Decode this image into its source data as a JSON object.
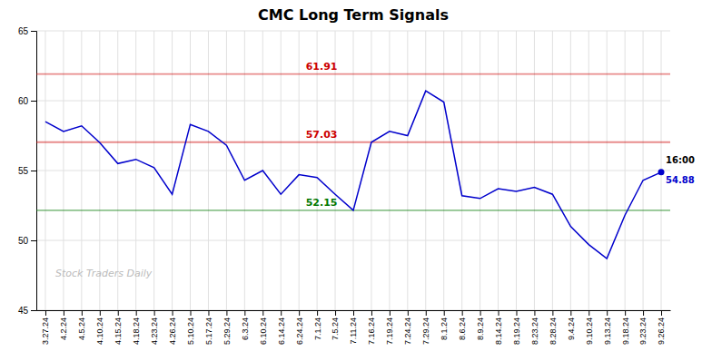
{
  "chart_data": {
    "type": "line",
    "title": "CMC Long Term Signals",
    "categories": [
      "3.27.24",
      "4.2.24",
      "4.5.24",
      "4.10.24",
      "4.15.24",
      "4.18.24",
      "4.23.24",
      "4.26.24",
      "5.10.24",
      "5.17.24",
      "5.29.24",
      "6.3.24",
      "6.10.24",
      "6.14.24",
      "6.24.24",
      "7.1.24",
      "7.5.24",
      "7.11.24",
      "7.16.24",
      "7.19.24",
      "7.24.24",
      "7.29.24",
      "8.1.24",
      "8.6.24",
      "8.9.24",
      "8.14.24",
      "8.19.24",
      "8.23.24",
      "8.28.24",
      "9.4.24",
      "9.10.24",
      "9.13.24",
      "9.18.24",
      "9.23.24",
      "9.26.24"
    ],
    "values": [
      58.5,
      57.8,
      58.2,
      57.0,
      55.5,
      55.8,
      55.2,
      53.3,
      58.3,
      57.8,
      56.8,
      54.3,
      55.0,
      53.3,
      54.7,
      54.5,
      53.3,
      52.15,
      57.03,
      57.8,
      57.5,
      60.7,
      59.9,
      53.2,
      53.0,
      53.7,
      53.5,
      53.8,
      53.3,
      51.0,
      49.7,
      48.7,
      51.8,
      54.3,
      54.88
    ],
    "color": "#0000cc",
    "ylim": [
      45,
      65
    ],
    "yticks": [
      45,
      50,
      55,
      60,
      65
    ],
    "grid": true,
    "annotations": [
      {
        "type": "hline",
        "value": 61.91,
        "label": "61.91",
        "color": "#cc0000"
      },
      {
        "type": "hline",
        "value": 57.03,
        "label": "57.03",
        "color": "#cc0000"
      },
      {
        "type": "hline",
        "value": 52.15,
        "label": "52.15",
        "color": "#007700"
      },
      {
        "type": "last-point",
        "label": "16:00"
      },
      {
        "type": "last-point-value",
        "label": "54.88"
      },
      {
        "type": "watermark",
        "label": "Stock Traders Daily"
      }
    ]
  }
}
